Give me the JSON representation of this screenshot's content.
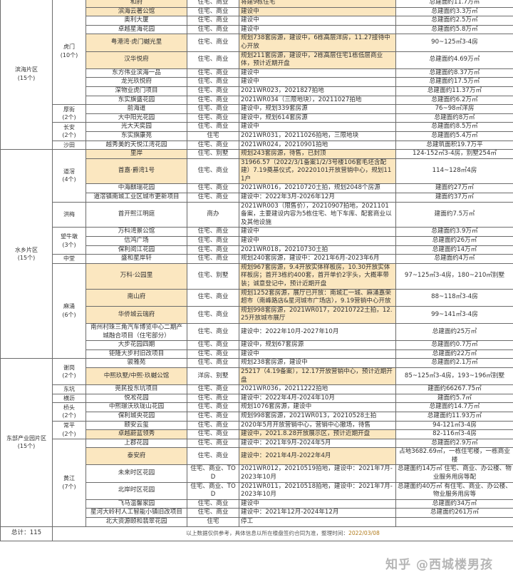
{
  "regions": [
    {
      "label": "滨海片区\n(15个)",
      "towns": [
        {
          "label": "虎门\n(10个)",
          "projects": [
            {
              "name": "和府",
              "type": "住宅、商业",
              "status": "将建9栋住宅",
              "area": "总建面约11.7万㎡",
              "hl": true
            },
            {
              "name": "滨海云著公馆",
              "type": "住宅、商业",
              "status": "建设中",
              "area": "总建面约3.3万㎡",
              "hl": true
            },
            {
              "name": "奥利大厦",
              "type": "住宅、商业",
              "status": "建设中",
              "area": "总建面约2.5万㎡"
            },
            {
              "name": "卓越星海花园",
              "type": "住宅、商业",
              "status": "建设中",
              "area": "总建面约5.8万㎡"
            },
            {
              "name": "粤港湾·虎门樾光里",
              "type": "住宅、商业",
              "status": "规划738套房源，建设中，6栋高层洋房，11.27接待中心开放",
              "area": "90~125㎡3-4房",
              "hl": true
            },
            {
              "name": "汉华悦府",
              "type": "住宅、商业",
              "status": "规划211套房源，建设中，2栋高层住宅1栋低层商业体，预计近期开盘",
              "area": "总建面约4.69万㎡",
              "hl": true
            },
            {
              "name": "东方伟业滨海一品",
              "type": "住宅、商业",
              "status": "建设中",
              "area": "总建面约8.37万㎡"
            },
            {
              "name": "龙光玖悦府",
              "type": "住宅、商业",
              "status": "建设中",
              "area": "总建面约17.5万㎡"
            },
            {
              "name": "深物业虎门项目",
              "type": "住宅、商业",
              "status": "2021WR023，2021827拍地",
              "area": "总建面约11.37万㎡"
            },
            {
              "name": "东实旗盛花园",
              "type": "住宅、商业",
              "status": "2021WR034（三限地块），20211027拍地",
              "area": "总建面约6.2万㎡"
            }
          ]
        },
        {
          "label": "厚街\n(2个)",
          "projects": [
            {
              "name": "前海道",
              "type": "住宅、商业",
              "status": "建设中，规划339套房源",
              "area": "76~98㎡洋房"
            },
            {
              "name": "大中阳光花园",
              "type": "住宅、商业",
              "status": "建设中，规划614套房源",
              "area": "总建面约8万㎡"
            }
          ]
        },
        {
          "label": "长安\n(2个)",
          "projects": [
            {
              "name": "光大天奕园",
              "type": "住宅、商业",
              "status": "建设中",
              "area": "总建面约8.5万㎡"
            },
            {
              "name": "东实旗康苑",
              "type": "住宅",
              "status": "2021WR031，20211026拍地，三限地块",
              "area": "总建面约5.4万㎡"
            }
          ]
        },
        {
          "label": "沙田",
          "projects": [
            {
              "name": "越秀美的天悦江湾花园",
              "type": "住宅、商业",
              "status": "2021WR024，20210901拍地",
              "area": "总建筑面积19.7万平"
            }
          ]
        }
      ]
    },
    {
      "label": "水乡片区\n(15个)",
      "towns": [
        {
          "label": "道滘\n(4个)",
          "projects": [
            {
              "name": "里岸",
              "type": "住宅、别墅",
              "status": "规划243套房源，待售，已封顶",
              "area": "124-152㎡3-4房，别墅254㎡",
              "hl": true
            },
            {
              "name": "首嘉·爵湾1号",
              "type": "住宅、商业",
              "status": "31966.57（2022/3/1备案1/2/3号楼106套毛坯含配建）7.19奠基仪式，20220101开放营销中心，规划111户",
              "area": "114~128㎡4房",
              "hl": true
            },
            {
              "name": "中海麒瑞花园",
              "type": "住宅、商业",
              "status": "2021WR016，20210720土拍，规划2048个房源",
              "area": "建面约27万㎡"
            },
            {
              "name": "道滘镇南城工业区城市更新项目",
              "type": "住宅、商业",
              "status": "建设中：2022年3月-2026年12月",
              "area": "建面约37万㎡"
            }
          ]
        },
        {
          "label": "洪梅",
          "projects": [
            {
              "name": "首开熙江明庭",
              "type": "商办",
              "status": "2021WR003（限售价），20210907拍地，2021101备案，主要建设内容为5栋住宅、地下车库、配套商业以及其他设施",
              "area": "建面约7.5万㎡"
            }
          ]
        },
        {
          "label": "望牛墩\n(3个)",
          "projects": [
            {
              "name": "万科湾景公馆",
              "type": "住宅、商业",
              "status": "建设中",
              "area": "总建面约3.9万㎡"
            },
            {
              "name": "信鸿广场",
              "type": "住宅、商业",
              "status": "建设中",
              "area": "总建面约26万㎡"
            },
            {
              "name": "保利阅江花园",
              "type": "住宅、商业",
              "status": "2021WR018，20210730土拍",
              "area": "总建面约14万㎡"
            }
          ]
        },
        {
          "label": "中堂",
          "projects": [
            {
              "name": "盛和星岸轩",
              "type": "住宅、商业",
              "status": "规划240套房源，建设中：2021年6月-2023年6月",
              "area": "总建面约4万㎡"
            }
          ]
        },
        {
          "label": "麻涌\n(6个)",
          "projects": [
            {
              "name": "万科·公园里",
              "type": "住宅、别墅",
              "status": "规划967套房源，9.4开放实体样板房，10.30开放实体样板房；首开3栋约400套，首开单价2字头，大概率带装；诚意登记中，预计近期开盘",
              "area": "97~125㎡3-4房，180~210㎡别墅",
              "hl": true
            },
            {
              "name": "南山府",
              "type": "住宅、商业",
              "status": "规划1252套房源，展厅已开放：南城汇一城、麻涌嘉荣超市（南峰路店&星河城市广场店），9.19营销中心开放",
              "area": "88~118㎡3-4房",
              "hl": true
            },
            {
              "name": "华侨城云瑞府",
              "type": "住宅、商业",
              "status": "规划998套房源，2021WR017，20210722土拍，12.25开放城市展厅",
              "area": "99~141㎡3-4房",
              "hl": true
            },
            {
              "name": "南州村珠三角汽车博览中心二期产城融合项目（住宅部分）",
              "type": "住宅、商业",
              "status": "建设中：2022年10月-2027年10月",
              "area": "总建面约25万㎡"
            },
            {
              "name": "大步花园四期",
              "type": "住宅、商业",
              "status": "建设中，规划67套房源",
              "area": "总建面约0.7万㎡"
            },
            {
              "name": "钜隆大步村旧改项目",
              "type": "住宅、商业",
              "status": "建设中",
              "area": "总建面约22万㎡"
            }
          ]
        }
      ]
    },
    {
      "label": "东部产业园片区\n(15个)",
      "towns": [
        {
          "label": "谢岗\n(2个)",
          "projects": [
            {
              "name": "骏雅苑",
              "type": "住宅、商业",
              "status": "规划238套房源，建设中",
              "area": "总建面约2.1万㎡"
            },
            {
              "name": "中熙玖墅/中熙·玖樾公馆",
              "type": "洋房、别墅",
              "status": "25217（4.19备案），12.17开放营销中心，预计近期开盘",
              "area": "85~125㎡3-4房，193~196㎡别墅",
              "hl": true
            }
          ]
        },
        {
          "label": "东坑",
          "projects": [
            {
              "name": "莞民投东坑项目",
              "type": "住宅、商业",
              "status": "2021WR036，20211222拍地",
              "area": "建面约66267.75㎡"
            }
          ]
        },
        {
          "label": "横沥",
          "projects": [
            {
              "name": "悦凇花园",
              "type": "住宅、商业",
              "status": "建设中：2022年4月-2024年10月",
              "area": "建面约5.7㎡"
            }
          ]
        },
        {
          "label": "桥头\n(2个)",
          "projects": [
            {
              "name": "中熙璟沃玖珑山花园",
              "type": "住宅、商业",
              "status": "规划1076套房源，建设中",
              "area": "总建面约14.7万㎡"
            },
            {
              "name": "保利城央花园",
              "type": "住宅、商业",
              "status": "规划998套房源，2021WR013，20210528土拍",
              "area": "总建面约11.93万㎡"
            }
          ]
        },
        {
          "label": "常平\n(2个)",
          "projects": [
            {
              "name": "颐安云玺",
              "type": "住宅、商业",
              "status": "2020年5月开放营销中心，营销中心撤场，待售",
              "area": "94-121㎡3-4房"
            },
            {
              "name": "卓越蔚蓝领秀",
              "type": "住宅、商业",
              "status": "建设中，2021.8.28开放展示区，预计近期开盘",
              "area": "82-116㎡3-4房",
              "hl": true
            }
          ]
        },
        {
          "label": "黄江\n(7个)",
          "projects": [
            {
              "name": "上郡花园",
              "type": "住宅、商业",
              "status": "建设中：2021年9月-2024年5月",
              "area": "总建面约2.9万㎡"
            },
            {
              "name": "泰安府",
              "type": "住宅、商业",
              "status": "建设中：2021年4月-2022年4月",
              "area": "占地3682.69㎡，一栋住宅楼，一栋商业楼",
              "hl": true
            },
            {
              "name": "未来时区花园",
              "type": "住宅、商业、TOD",
              "status": "2021WR012，20210519拍地，建设中：2021年7月-2023年10月",
              "area": "总建面约14万㎡ 住宅、商业、办公楼、物业服务用房等配"
            },
            {
              "name": "北岸时区花园",
              "type": "住宅、商业、TOD",
              "status": "2021WR011，20210518拍地，建设中：2021年7月-2023年10月",
              "area": "总建面约40万㎡ 有住宅、商业、办公楼、物业服务用房等"
            },
            {
              "name": "飞马温馨家园",
              "type": "住宅、商业",
              "status": "建设中",
              "area": "总建面约34万㎡"
            },
            {
              "name": "星河大岭村人工智能小镇旧改项目",
              "type": "住宅、商业",
              "status": "建设中：2021年12月-2024年12月",
              "area": "总建面约261万㎡"
            },
            {
              "name": "北大资源颐和翡翠花园",
              "type": "住宅",
              "status": "停工",
              "area": ""
            }
          ]
        }
      ]
    }
  ],
  "footer": {
    "total": "总计：115",
    "note": "以上数据仅供参考，具体信息以所在楼盘签约合同为准，整理时间：",
    "date": "2022/03/08"
  },
  "watermark": "知乎 @西城楼男孩",
  "colors": {
    "highlight": "#fbe7c0",
    "border": "#6b6b6b"
  }
}
